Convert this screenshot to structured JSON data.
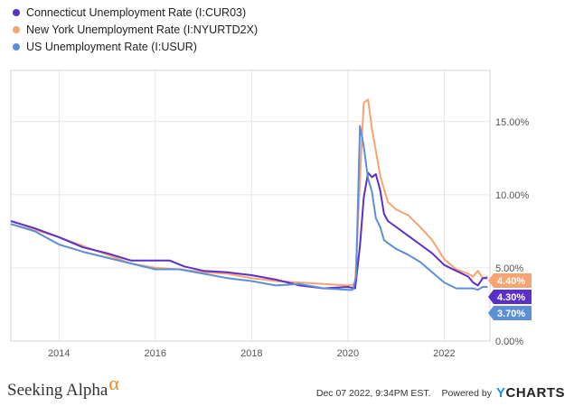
{
  "chart_data": {
    "type": "line",
    "x_range": [
      2013.0,
      2022.95
    ],
    "ylim": [
      0,
      18.5
    ],
    "xticks": [
      2014,
      2016,
      2018,
      2020,
      2022
    ],
    "xtick_labels": [
      "2014",
      "2016",
      "2018",
      "2020",
      "2022"
    ],
    "yticks": [
      0,
      5,
      10,
      15
    ],
    "ytick_labels": [
      "0.00%",
      "5.00%",
      "10.00%",
      "15.00%"
    ],
    "series": [
      {
        "name": "Connecticut Unemployment Rate (I:CUR03)",
        "color": "#5b2fc9",
        "last_label": "4.30%",
        "x": [
          2013.0,
          2013.5,
          2014.0,
          2014.5,
          2015.0,
          2015.5,
          2016.0,
          2016.3,
          2016.6,
          2017.0,
          2017.5,
          2018.0,
          2018.5,
          2019.0,
          2019.5,
          2020.0,
          2020.15,
          2020.25,
          2020.33,
          2020.42,
          2020.5,
          2020.58,
          2020.67,
          2020.75,
          2020.83,
          2021.0,
          2021.25,
          2021.5,
          2021.75,
          2022.0,
          2022.25,
          2022.5,
          2022.6,
          2022.7,
          2022.8,
          2022.9
        ],
        "y": [
          8.2,
          7.7,
          7.1,
          6.4,
          6.0,
          5.5,
          5.5,
          5.5,
          5.1,
          4.8,
          4.7,
          4.5,
          4.2,
          3.8,
          3.6,
          3.7,
          3.6,
          6.5,
          9.8,
          11.5,
          11.2,
          11.4,
          10.3,
          8.7,
          8.2,
          7.8,
          7.2,
          6.6,
          6.0,
          5.2,
          4.8,
          4.4,
          4.0,
          3.8,
          4.3,
          4.3
        ]
      },
      {
        "name": "New York Unemployment Rate (I:NYURTD2X)",
        "color": "#f7a470",
        "last_label": "4.40%",
        "x": [
          2013.0,
          2013.5,
          2014.0,
          2014.5,
          2015.0,
          2015.5,
          2016.0,
          2016.5,
          2017.0,
          2017.5,
          2018.0,
          2018.5,
          2019.0,
          2019.5,
          2020.0,
          2020.15,
          2020.25,
          2020.33,
          2020.42,
          2020.5,
          2020.58,
          2020.67,
          2020.75,
          2020.83,
          2021.0,
          2021.25,
          2021.5,
          2021.75,
          2022.0,
          2022.25,
          2022.5,
          2022.6,
          2022.7,
          2022.8,
          2022.9
        ],
        "y": [
          8.0,
          7.6,
          7.1,
          6.5,
          5.9,
          5.3,
          5.0,
          4.9,
          4.7,
          4.6,
          4.3,
          4.1,
          4.0,
          3.9,
          3.8,
          3.9,
          11.0,
          16.3,
          16.5,
          14.5,
          13.0,
          11.3,
          10.4,
          9.5,
          9.0,
          8.6,
          7.8,
          6.9,
          5.6,
          4.9,
          4.6,
          4.4,
          4.8,
          4.3,
          4.4
        ]
      },
      {
        "name": "US Unemployment Rate (I:USUR)",
        "color": "#5b8fd8",
        "last_label": "3.70%",
        "x": [
          2013.0,
          2013.5,
          2014.0,
          2014.5,
          2015.0,
          2015.5,
          2016.0,
          2016.5,
          2017.0,
          2017.5,
          2018.0,
          2018.5,
          2019.0,
          2019.5,
          2020.0,
          2020.1,
          2020.17,
          2020.25,
          2020.33,
          2020.42,
          2020.5,
          2020.58,
          2020.67,
          2020.75,
          2020.83,
          2021.0,
          2021.25,
          2021.5,
          2021.75,
          2022.0,
          2022.25,
          2022.5,
          2022.6,
          2022.7,
          2022.8,
          2022.9
        ],
        "y": [
          8.0,
          7.5,
          6.6,
          6.1,
          5.7,
          5.3,
          4.9,
          4.9,
          4.6,
          4.3,
          4.1,
          3.8,
          3.9,
          3.6,
          3.5,
          3.5,
          4.4,
          14.7,
          13.3,
          11.1,
          10.2,
          8.4,
          7.8,
          6.9,
          6.7,
          6.3,
          5.9,
          5.4,
          4.7,
          4.0,
          3.6,
          3.6,
          3.6,
          3.5,
          3.7,
          3.7
        ]
      }
    ]
  },
  "footer": {
    "brand": "Seeking Alpha",
    "brand_mark": "α",
    "timestamp": "Dec 07 2022, 9:34PM EST.",
    "powered_by": "Powered by",
    "ycharts_y": "Y",
    "ycharts_rest": "CHARTS"
  }
}
